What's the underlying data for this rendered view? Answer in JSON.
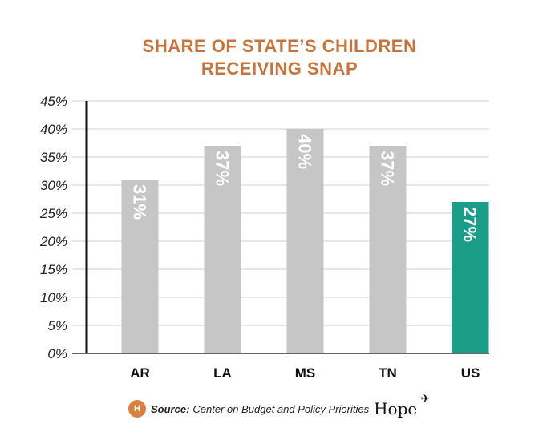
{
  "title_line1": "SHARE OF STATE’S CHILDREN",
  "title_line2": "RECEIVING SNAP",
  "chart_data": {
    "type": "bar",
    "title": "SHARE OF STATE’S CHILDREN RECEIVING SNAP",
    "categories": [
      "AR",
      "LA",
      "MS",
      "TN",
      "US"
    ],
    "values": [
      31,
      37,
      40,
      37,
      27
    ],
    "data_labels": [
      "31%",
      "37%",
      "40%",
      "37%",
      "27%"
    ],
    "yticks": [
      "0%",
      "5%",
      "10%",
      "15%",
      "20%",
      "25%",
      "30%",
      "35%",
      "40%",
      "45%"
    ],
    "ylim": [
      0,
      45
    ],
    "grid": true,
    "colors": [
      "#c6c6c6",
      "#c6c6c6",
      "#c6c6c6",
      "#c6c6c6",
      "#1a9e8a"
    ]
  },
  "footer": {
    "source_label": "Source:",
    "source_text": "Center on Budget and Policy Priorities",
    "logo_text": "Hope"
  },
  "colors": {
    "title": "#c8733a",
    "bar": "#c6c6c6",
    "highlight": "#1a9e8a"
  }
}
